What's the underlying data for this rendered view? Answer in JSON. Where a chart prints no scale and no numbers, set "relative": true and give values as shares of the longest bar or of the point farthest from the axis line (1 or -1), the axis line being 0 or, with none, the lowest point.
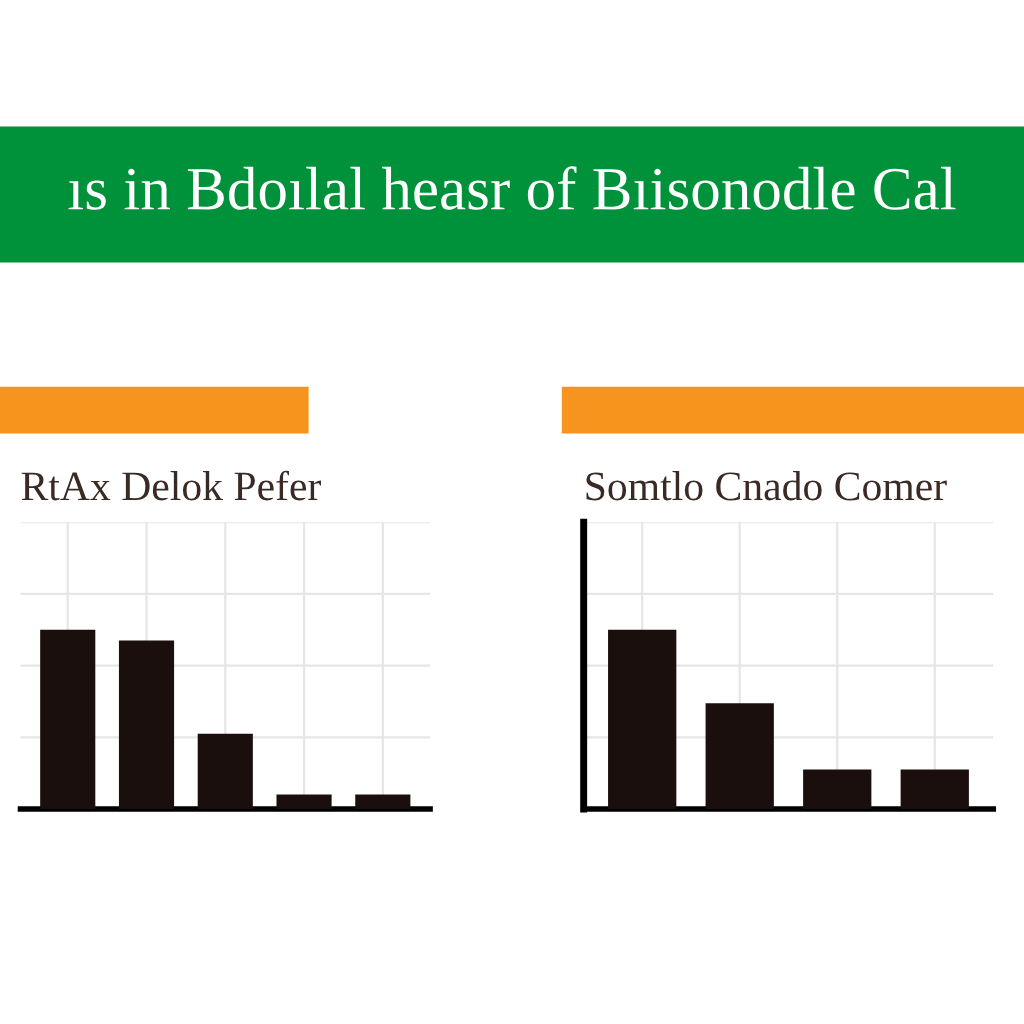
{
  "chart_data": [
    {
      "type": "bar",
      "title": "RtAx Delok Pefer",
      "annotations": [
        "ıs in Bdoılal heasr of Bıisonodle Cal"
      ],
      "categories": [
        null,
        null,
        null,
        null,
        null
      ],
      "relative": true,
      "tick_labels": false,
      "grid": true,
      "series": [
        {
          "color": "#1a0f0d",
          "values": [
            1,
            0.94,
            0.42,
            0.08,
            0.08
          ]
        }
      ]
    },
    {
      "type": "bar",
      "title": "Somtlo Cnado Comer",
      "categories": [
        null,
        null,
        null,
        null
      ],
      "relative": true,
      "tick_labels": false,
      "grid": true,
      "series": [
        {
          "color": "#1a0f0d",
          "values": [
            1,
            0.59,
            0.22,
            0.22
          ]
        }
      ]
    }
  ]
}
